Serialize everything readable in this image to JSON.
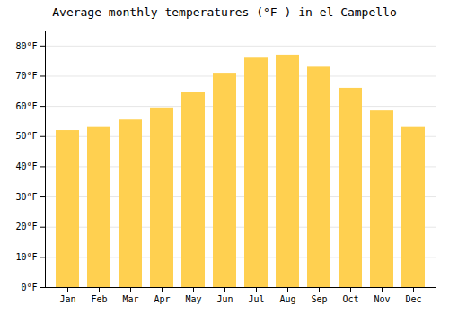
{
  "chart_data": {
    "type": "bar",
    "title": "Average monthly temperatures (°F ) in el Campello",
    "categories": [
      "Jan",
      "Feb",
      "Mar",
      "Apr",
      "May",
      "Jun",
      "Jul",
      "Aug",
      "Sep",
      "Oct",
      "Nov",
      "Dec"
    ],
    "values": [
      52,
      53,
      55.5,
      59.5,
      64.5,
      71,
      76,
      77,
      73,
      66,
      58.5,
      53
    ],
    "color": "#FFD050",
    "ylim": [
      0,
      85
    ],
    "yticks": [
      {
        "value": 0,
        "label": "0°F"
      },
      {
        "value": 10,
        "label": "10°F"
      },
      {
        "value": 20,
        "label": "20°F"
      },
      {
        "value": 30,
        "label": "30°F"
      },
      {
        "value": 40,
        "label": "40°F"
      },
      {
        "value": 50,
        "label": "50°F"
      },
      {
        "value": 60,
        "label": "60°F"
      },
      {
        "value": 70,
        "label": "70°F"
      },
      {
        "value": 80,
        "label": "80°F"
      }
    ],
    "grid": true
  }
}
